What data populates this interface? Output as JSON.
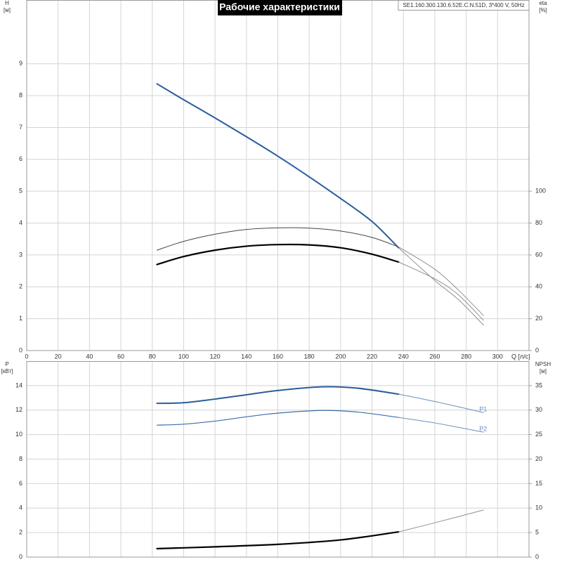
{
  "chart_data": [
    {
      "type": "line",
      "title": "Рабочие характеристики",
      "annotation": "SE1.160.300.130.6.52E.C.N.51D, 3*400 V, 50Hz",
      "ylabel": [
        "H",
        "[м]"
      ],
      "y2label": [
        "eta",
        "[%]"
      ],
      "xlabel": "Q [л/с]",
      "xlim": [
        0,
        320
      ],
      "xticks": [
        0,
        20,
        40,
        60,
        80,
        100,
        120,
        140,
        160,
        180,
        200,
        220,
        240,
        260,
        280,
        300
      ],
      "xticklabels": true,
      "ylim": [
        0,
        11
      ],
      "yticks": [
        0,
        1,
        2,
        3,
        4,
        5,
        6,
        7,
        8,
        9
      ],
      "y2lim": [
        0,
        220
      ],
      "y2ticks": [
        0,
        20,
        40,
        60,
        80,
        100
      ],
      "grid": true,
      "series": [
        {
          "color": "#2a5d9b",
          "width": 2,
          "x": [
            83,
            100,
            120,
            140,
            160,
            180,
            200,
            220,
            237
          ],
          "values": [
            8.37,
            7.87,
            7.3,
            6.71,
            6.1,
            5.45,
            4.77,
            4.05,
            3.22
          ]
        },
        {
          "color": "#909090",
          "width": 1,
          "x": [
            237,
            260,
            275,
            291
          ],
          "values": [
            3.22,
            2.2,
            1.6,
            0.8
          ]
        },
        {
          "color": "#444444",
          "width": 1,
          "axis": "y2",
          "x": [
            83,
            100,
            120,
            140,
            160,
            180,
            200,
            220,
            237
          ],
          "values": [
            63,
            68.5,
            73,
            76,
            77,
            76.8,
            75,
            71,
            65
          ]
        },
        {
          "color": "#909090",
          "width": 1,
          "axis": "y2",
          "x": [
            237,
            260,
            275,
            291
          ],
          "values": [
            65,
            51,
            38,
            22
          ]
        },
        {
          "color": "#000000",
          "width": 2.2,
          "axis": "y2",
          "x": [
            83,
            100,
            120,
            140,
            160,
            180,
            200,
            220,
            237
          ],
          "values": [
            54,
            59,
            63,
            65.5,
            66.5,
            66.3,
            64.5,
            60.5,
            55.5
          ]
        },
        {
          "color": "#909090",
          "width": 1,
          "axis": "y2",
          "x": [
            237,
            260,
            275,
            291
          ],
          "values": [
            55.5,
            45,
            35,
            19
          ]
        }
      ]
    },
    {
      "type": "line",
      "ylabel": [
        "P",
        "[кВт]"
      ],
      "y2label": [
        "NPSH",
        "[м]"
      ],
      "xlim": [
        0,
        320
      ],
      "xticks": [
        0,
        20,
        40,
        60,
        80,
        100,
        120,
        140,
        160,
        180,
        200,
        220,
        240,
        260,
        280,
        300
      ],
      "xticklabels": false,
      "ylim": [
        0,
        16
      ],
      "yticks": [
        0,
        2,
        4,
        6,
        8,
        10,
        12,
        14
      ],
      "y2lim": [
        0,
        40
      ],
      "y2ticks": [
        0,
        5,
        10,
        15,
        20,
        25,
        30,
        35
      ],
      "grid": true,
      "series": [
        {
          "color": "#2a5d9b",
          "width": 2,
          "x": [
            83,
            100,
            120,
            140,
            160,
            188,
            210,
            237
          ],
          "values": [
            12.55,
            12.6,
            12.9,
            13.25,
            13.6,
            13.9,
            13.8,
            13.3
          ]
        },
        {
          "name": "P1",
          "color": "#6a8fbf",
          "width": 1,
          "x": [
            237,
            260,
            291
          ],
          "values": [
            13.3,
            12.7,
            11.8
          ]
        },
        {
          "color": "#3c6ea8",
          "width": 1.2,
          "x": [
            83,
            100,
            120,
            140,
            160,
            188,
            210,
            237
          ],
          "values": [
            10.77,
            10.85,
            11.1,
            11.45,
            11.75,
            11.97,
            11.85,
            11.4
          ]
        },
        {
          "name": "P2",
          "color": "#6a8fbf",
          "width": 1,
          "x": [
            237,
            260,
            291
          ],
          "values": [
            11.4,
            10.95,
            10.2
          ]
        },
        {
          "color": "#000000",
          "width": 2.2,
          "axis": "y2",
          "x": [
            83,
            120,
            160,
            200,
            237
          ],
          "values": [
            1.72,
            2.1,
            2.6,
            3.5,
            5.15
          ]
        },
        {
          "color": "#909090",
          "width": 1,
          "axis": "y2",
          "x": [
            237,
            260,
            291
          ],
          "values": [
            5.15,
            7,
            9.6
          ]
        }
      ]
    }
  ]
}
